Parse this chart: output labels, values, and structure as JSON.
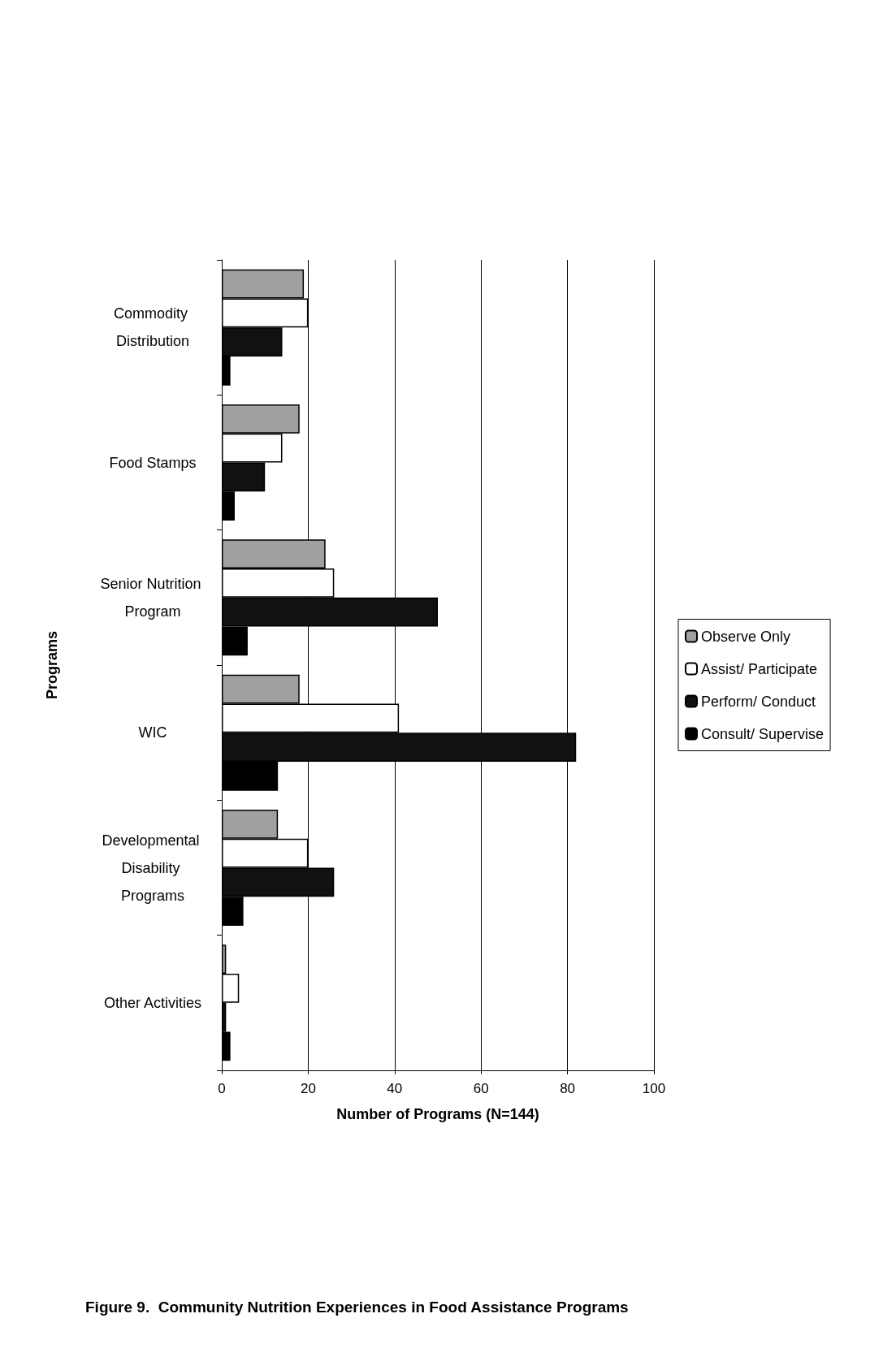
{
  "chart_data": {
    "type": "bar",
    "orientation": "horizontal",
    "title": "Figure 9.  Community Nutrition Experiences in Food Assistance Programs",
    "xlabel": "Number of Programs (N=144)",
    "ylabel": "Programs",
    "categories": [
      "Commodity Distribution",
      "Food Stamps",
      "Senior Nutrition Program",
      "WIC",
      "Developmental Disability Programs",
      "Other Activities"
    ],
    "series": [
      {
        "name": "Observe Only",
        "color": "#a0a0a0",
        "values": [
          19,
          18,
          24,
          18,
          13,
          1
        ]
      },
      {
        "name": "Assist/ Participate",
        "color": "#ffffff",
        "values": [
          20,
          14,
          26,
          41,
          20,
          4
        ]
      },
      {
        "name": "Perform/ Conduct",
        "color": "#111111",
        "values": [
          14,
          10,
          50,
          82,
          26,
          1
        ]
      },
      {
        "name": "Consult/ Supervise",
        "color": "#000000",
        "values": [
          2,
          3,
          6,
          13,
          5,
          2
        ]
      }
    ],
    "xlim": [
      0,
      100
    ],
    "xticks": [
      0,
      20,
      40,
      60,
      80,
      100
    ],
    "grid": "x",
    "legend": "right"
  }
}
